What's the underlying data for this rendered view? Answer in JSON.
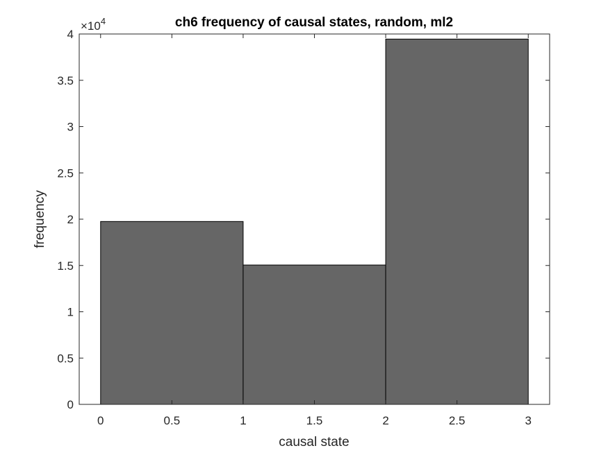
{
  "chart_data": {
    "type": "bar",
    "title": "ch6 frequency of causal states, random, ml2",
    "xlabel": "causal state",
    "ylabel": "frequency",
    "exponent_label": "×10",
    "exponent_power": "4",
    "bins": [
      {
        "x_start": 0,
        "x_end": 1,
        "value": 19750
      },
      {
        "x_start": 1,
        "x_end": 2,
        "value": 15050
      },
      {
        "x_start": 2,
        "x_end": 3,
        "value": 39450
      }
    ],
    "xlim": [
      -0.15,
      3.15
    ],
    "ylim": [
      0,
      40000
    ],
    "xticks": [
      0,
      0.5,
      1,
      1.5,
      2,
      2.5,
      3
    ],
    "xtick_labels": [
      "0",
      "0.5",
      "1",
      "1.5",
      "2",
      "2.5",
      "3"
    ],
    "yticks": [
      0,
      5000,
      10000,
      15000,
      20000,
      25000,
      30000,
      35000,
      40000
    ],
    "ytick_labels": [
      "0",
      "0.5",
      "1",
      "1.5",
      "2",
      "2.5",
      "3",
      "3.5",
      "4"
    ],
    "bar_color": "#666666",
    "bar_edge_color": "#000000",
    "axis_color": "#262626",
    "grid": false,
    "legend": "none"
  }
}
